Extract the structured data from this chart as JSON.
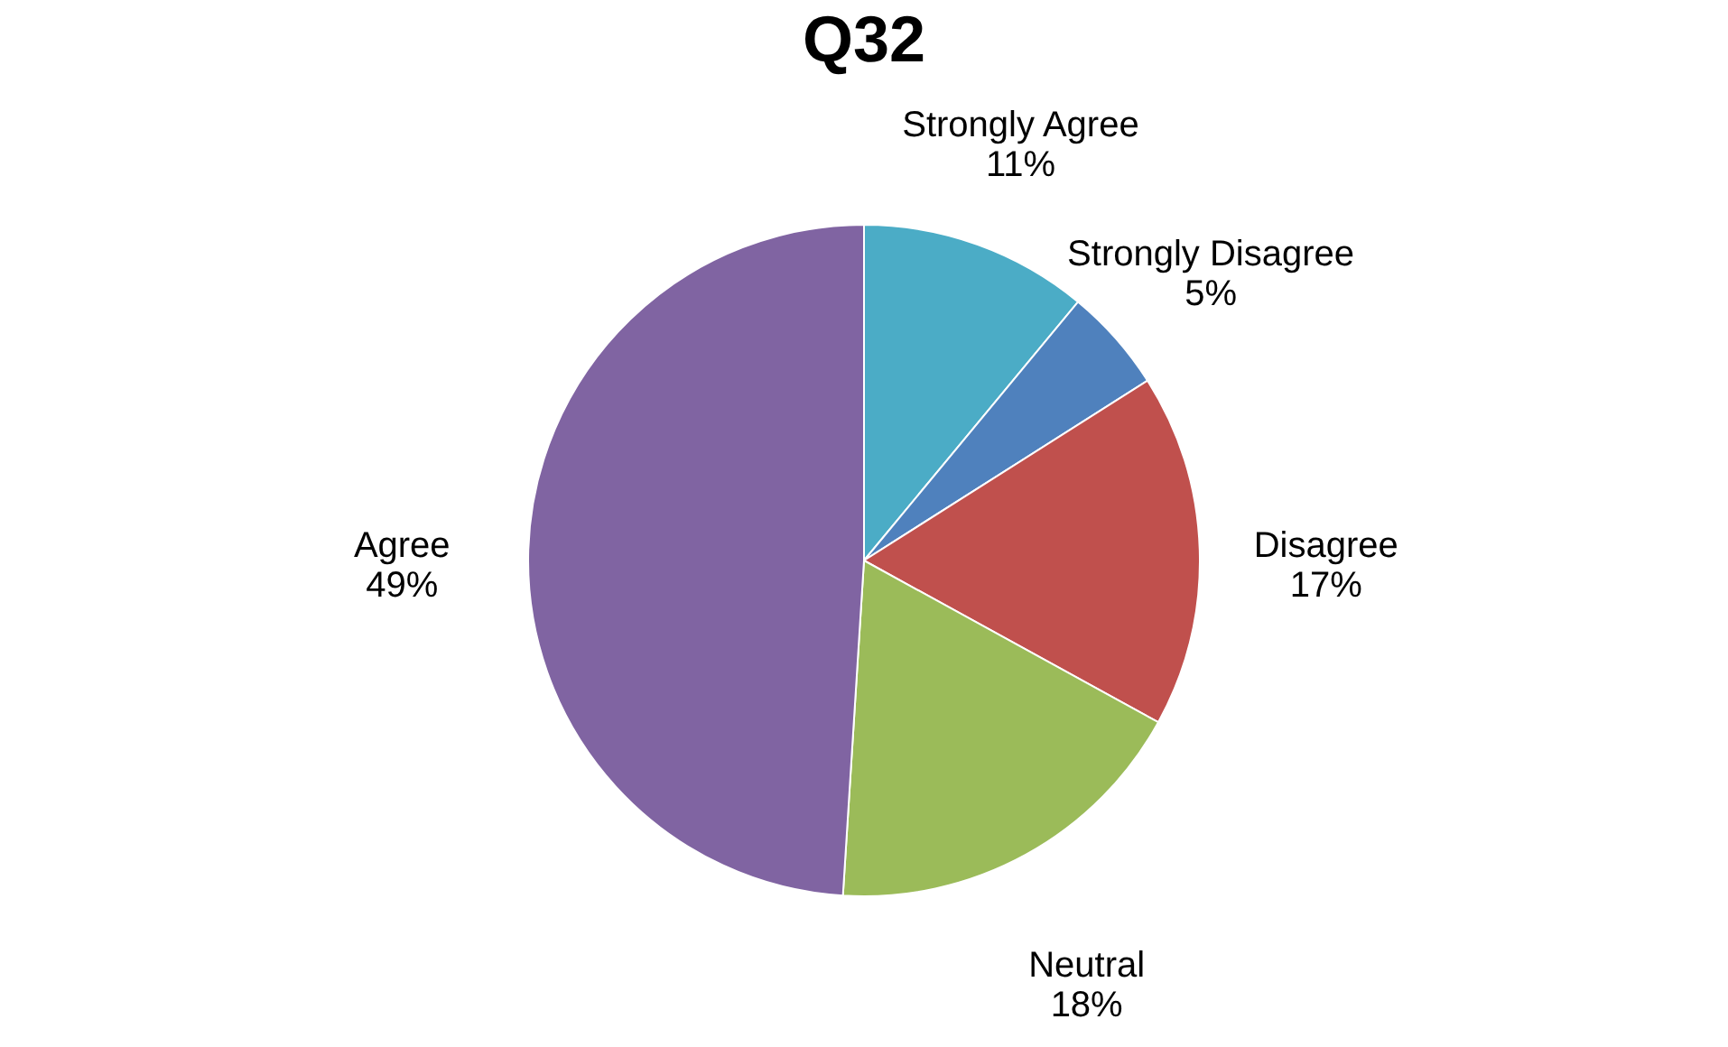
{
  "chart_data": {
    "type": "pie",
    "title": "Q32",
    "categories": [
      "Strongly Agree",
      "Strongly Disagree",
      "Disagree",
      "Neutral",
      "Agree"
    ],
    "values": [
      11,
      5,
      17,
      18,
      49
    ],
    "value_labels": [
      "11%",
      "5%",
      "17%",
      "18%",
      "49%"
    ],
    "colors": [
      "#4bacc6",
      "#4f81bd",
      "#c0504d",
      "#9bbb59",
      "#8064a2"
    ],
    "legend": false
  }
}
